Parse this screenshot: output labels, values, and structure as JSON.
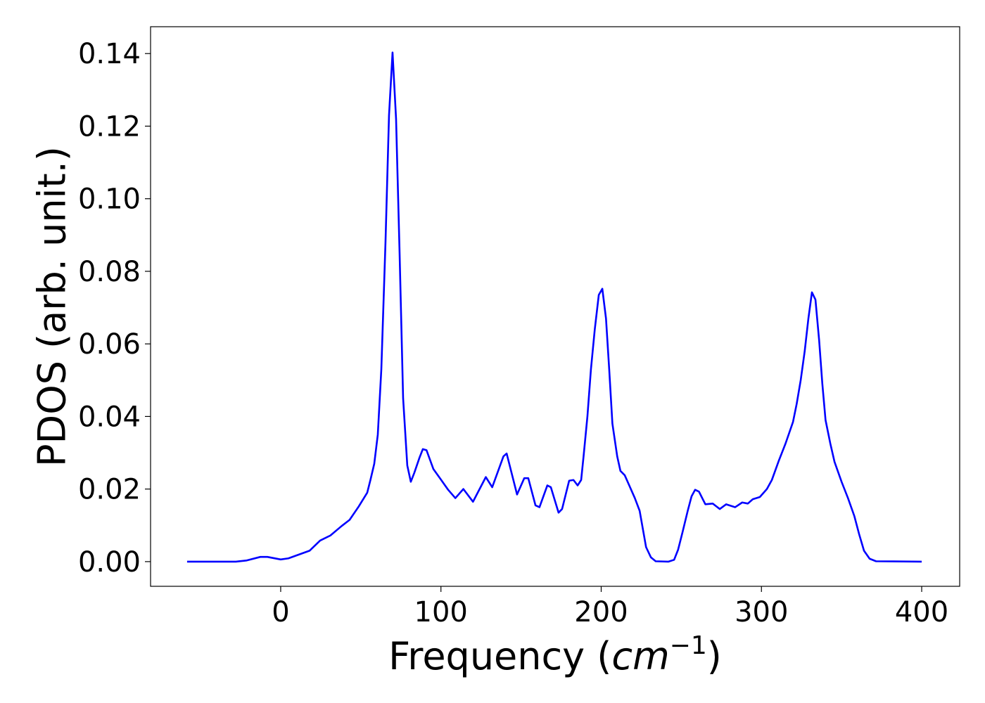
{
  "chart_data": {
    "type": "line",
    "xlabel": {
      "text": "Frequency (",
      "italic": "cm",
      "sup": "−1",
      "close": ")"
    },
    "ylabel": "PDOS (arb. unit.)",
    "xlim": [
      -81.2,
      423.7
    ],
    "ylim": [
      -0.0068,
      0.1474
    ],
    "xticks": [
      0,
      100,
      200,
      300,
      400
    ],
    "yticks": [
      {
        "value": 0,
        "label": "0.00"
      },
      0.02,
      0.04,
      0.06,
      0.08,
      {
        "value": 0.1,
        "label": "0.10"
      },
      0.12,
      0.14
    ],
    "grid": false,
    "series": [
      {
        "color": "#0000ff",
        "x": [
          -58.4,
          -28,
          -21.5,
          -12.7,
          -8.3,
          0,
          4.8,
          18,
          24.6,
          31,
          38,
          43,
          48.7,
          54,
          56,
          58.4,
          60.6,
          62.8,
          65.4,
          67.6,
          69.8,
          72,
          74.2,
          76.4,
          79,
          81.2,
          83.4,
          86.5,
          88.7,
          91,
          95.3,
          99.7,
          104.5,
          109,
          114,
          120,
          128,
          132,
          139,
          141,
          147.5,
          152,
          154.5,
          159,
          161.5,
          166.4,
          168.6,
          173.4,
          175.6,
          180,
          182.7,
          185.3,
          187.5,
          189,
          191.4,
          193.6,
          196,
          198.5,
          200.7,
          203,
          205,
          207,
          210,
          212,
          214.7,
          217,
          221,
          224,
          228,
          231,
          234,
          242,
          245.5,
          248,
          250.7,
          254,
          256.4,
          258.6,
          261,
          265,
          269.6,
          274,
          278,
          283.6,
          288,
          291.5,
          294.6,
          299,
          303.4,
          306.5,
          311,
          315,
          319.7,
          322,
          324.5,
          327,
          329.3,
          331.5,
          333.7,
          336,
          338,
          340,
          343,
          345.6,
          350,
          354,
          358,
          361,
          364,
          367.5,
          371.5,
          400
        ],
        "values": [
          0,
          0,
          0.0003,
          0.0013,
          0.0013,
          0.0006,
          0.0009,
          0.003,
          0.0058,
          0.0072,
          0.0098,
          0.0115,
          0.0152,
          0.019,
          0.0225,
          0.027,
          0.035,
          0.053,
          0.088,
          0.123,
          0.1403,
          0.122,
          0.085,
          0.045,
          0.0265,
          0.022,
          0.0245,
          0.0285,
          0.031,
          0.0307,
          0.0255,
          0.0228,
          0.0198,
          0.0175,
          0.02,
          0.0165,
          0.0233,
          0.0205,
          0.029,
          0.0298,
          0.0185,
          0.023,
          0.023,
          0.0155,
          0.015,
          0.021,
          0.0205,
          0.0135,
          0.0145,
          0.0223,
          0.0225,
          0.021,
          0.0225,
          0.029,
          0.04,
          0.053,
          0.064,
          0.0735,
          0.0752,
          0.067,
          0.053,
          0.038,
          0.029,
          0.025,
          0.0238,
          0.0215,
          0.0175,
          0.014,
          0.004,
          0.0012,
          0.0001,
          0,
          0.0005,
          0.0033,
          0.008,
          0.014,
          0.018,
          0.0198,
          0.0193,
          0.0158,
          0.016,
          0.0145,
          0.0158,
          0.015,
          0.0163,
          0.016,
          0.0172,
          0.0178,
          0.02,
          0.0225,
          0.028,
          0.0325,
          0.0385,
          0.0435,
          0.05,
          0.058,
          0.067,
          0.0742,
          0.0722,
          0.061,
          0.049,
          0.039,
          0.0325,
          0.0275,
          0.022,
          0.0175,
          0.0125,
          0.0075,
          0.003,
          0.0008,
          0.0001,
          0
        ]
      }
    ]
  }
}
